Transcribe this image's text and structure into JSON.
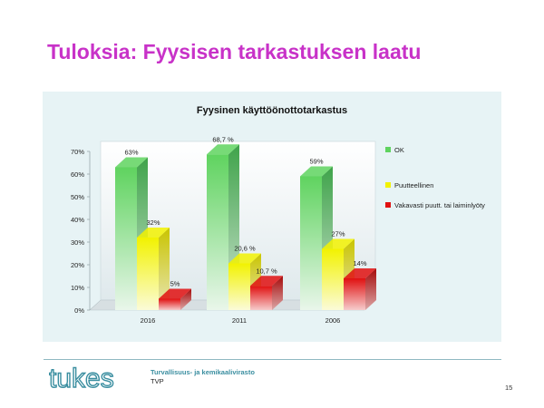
{
  "slide": {
    "title": "Tuloksia: Fyysisen tarkastuksen laatu",
    "org_name": "Turvallisuus- ja kemikaalivirasto",
    "org_sub": "TVP",
    "page_number": "15",
    "logo_text": "tukes"
  },
  "colors": {
    "title": "#c832c8",
    "ok": "#5fd35f",
    "puutteellinen": "#f2f200",
    "vakavasti": "#e01010",
    "logo": "#3a8ea0"
  },
  "chart_data": {
    "type": "bar",
    "title": "Fyysinen käyttöönottotarkastus",
    "categories": [
      "2016",
      "2011",
      "2006"
    ],
    "series": [
      {
        "name": "OK",
        "values": [
          63,
          68.7,
          59
        ],
        "labels": [
          "63%",
          "68,7 %",
          "59%"
        ],
        "color": "#5fd35f"
      },
      {
        "name": "Puutteellinen",
        "values": [
          32,
          20.6,
          27
        ],
        "labels": [
          "32%",
          "20,6 %",
          "27%"
        ],
        "color": "#f2f200"
      },
      {
        "name": "Vakavasti puutt. tai laiminlyöty",
        "values": [
          5,
          10.7,
          14
        ],
        "labels": [
          "5%",
          "10,7 %",
          "14%"
        ],
        "color": "#e01010"
      }
    ],
    "yticks": [
      "0%",
      "10%",
      "20%",
      "30%",
      "40%",
      "50%",
      "60%",
      "70%"
    ],
    "ylim": [
      0,
      70
    ],
    "legend_position": "right",
    "style": "3d-clustered",
    "grid": false
  }
}
